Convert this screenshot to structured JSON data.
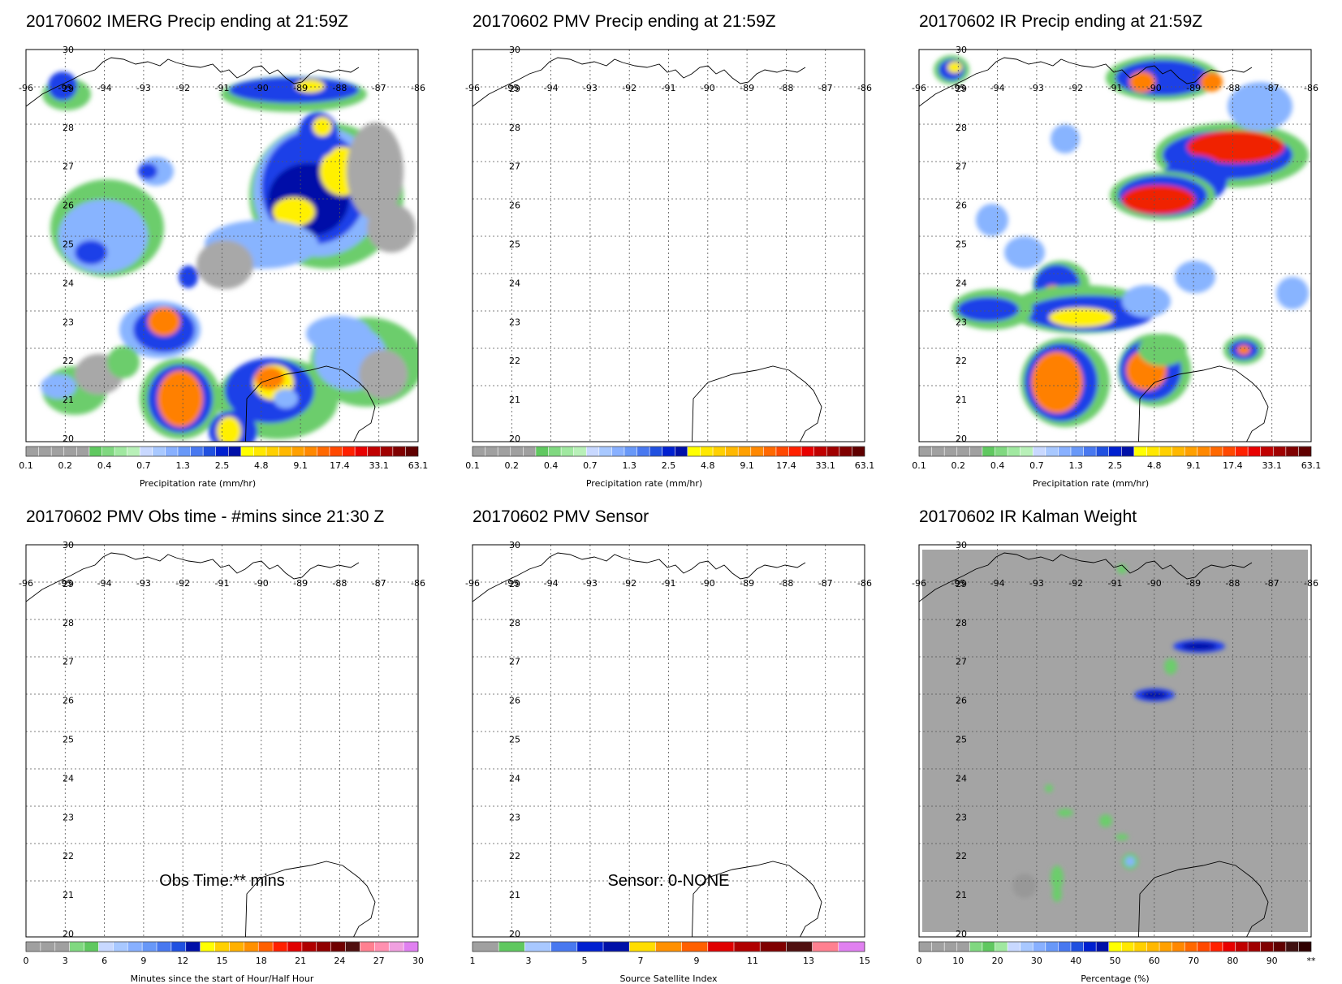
{
  "panels": [
    {
      "id": "imerg",
      "title": "20170602 IMERG Precip ending at 21:59Z",
      "colorbar_title": "Precipitation rate (mm/hr)",
      "colorbar_labels": [
        "0.1",
        "0.2",
        "0.4",
        "0.7",
        "1.3",
        "2.5",
        "4.8",
        "9.1",
        "17.4",
        "33.1",
        "63.1"
      ],
      "colorbar": "precip",
      "overlay": "imerg"
    },
    {
      "id": "pmv-precip",
      "title": "20170602 PMV Precip ending at 21:59Z",
      "colorbar_title": "Precipitation rate (mm/hr)",
      "colorbar_labels": [
        "0.1",
        "0.2",
        "0.4",
        "0.7",
        "1.3",
        "2.5",
        "4.8",
        "9.1",
        "17.4",
        "33.1",
        "63.1"
      ],
      "colorbar": "precip",
      "overlay": "none"
    },
    {
      "id": "ir-precip",
      "title": "20170602 IR Precip ending at 21:59Z",
      "colorbar_title": "Precipitation rate (mm/hr)",
      "colorbar_labels": [
        "0.1",
        "0.2",
        "0.4",
        "0.7",
        "1.3",
        "2.5",
        "4.8",
        "9.1",
        "17.4",
        "33.1",
        "63.1"
      ],
      "colorbar": "precip",
      "overlay": "ir"
    },
    {
      "id": "pmv-obs-time",
      "title": "20170602 PMV Obs time - #mins since 21:30 Z",
      "colorbar_title": "Minutes since the start of Hour/Half Hour",
      "colorbar_labels": [
        "0",
        "3",
        "6",
        "9",
        "12",
        "15",
        "18",
        "21",
        "24",
        "27",
        "30"
      ],
      "colorbar": "minutes",
      "overlay": "none",
      "annotation": "Obs Time:** mins"
    },
    {
      "id": "pmv-sensor",
      "title": "20170602 PMV Sensor",
      "colorbar_title": "Source Satellite Index",
      "colorbar_labels": [
        "1",
        "3",
        "5",
        "7",
        "9",
        "11",
        "13",
        "15"
      ],
      "colorbar": "sensor",
      "overlay": "none",
      "annotation": "Sensor:  0-NONE"
    },
    {
      "id": "ir-kalman",
      "title": "20170602 IR Kalman Weight",
      "colorbar_title": "Percentage (%)",
      "colorbar_labels": [
        "0",
        "10",
        "20",
        "30",
        "40",
        "50",
        "60",
        "70",
        "80",
        "90",
        "**"
      ],
      "colorbar": "percent",
      "overlay": "kalman"
    }
  ],
  "map": {
    "lon_labels": [
      "-96",
      "-95",
      "-94",
      "-93",
      "-92",
      "-91",
      "-90",
      "-89",
      "-88",
      "-87",
      "-86"
    ],
    "lat_labels": [
      "30",
      "29",
      "28",
      "27",
      "26",
      "25",
      "24",
      "23",
      "22",
      "21",
      "20"
    ],
    "lon_range": [
      -96,
      -86
    ],
    "lat_range": [
      20,
      30
    ]
  },
  "colors": {
    "precip": [
      "#a0a0a0",
      "#a0a0a0",
      "#a0a0a0",
      "#a0a0a0",
      "#a0a0a0",
      "#60c860",
      "#80d880",
      "#a0e8a0",
      "#b8f0b8",
      "#c8d8ff",
      "#a8c8ff",
      "#88b0ff",
      "#6898f8",
      "#4878f0",
      "#2050e0",
      "#0020d0",
      "#0010a8",
      "#ffff00",
      "#ffe800",
      "#ffd000",
      "#ffb800",
      "#ffa000",
      "#ff8800",
      "#ff6800",
      "#ff4800",
      "#ff2000",
      "#e80000",
      "#c00000",
      "#a00000",
      "#800000",
      "#600000"
    ],
    "minutes": [
      "#a0a0a0",
      "#a0a0a0",
      "#a0a0a0",
      "#80d880",
      "#60c860",
      "#c8d8ff",
      "#a8c8ff",
      "#88b0ff",
      "#6898f8",
      "#4878f0",
      "#2050e0",
      "#0010a8",
      "#ffff00",
      "#ffd000",
      "#ffb000",
      "#ff9000",
      "#ff6000",
      "#ff2000",
      "#e00000",
      "#b00000",
      "#900000",
      "#700000",
      "#501010",
      "#ff8090",
      "#ff90b0",
      "#f0a0e0",
      "#e080f0"
    ],
    "sensor": [
      "#a0a0a0",
      "#60c860",
      "#a8c8ff",
      "#4878f0",
      "#0020d0",
      "#0010a8",
      "#ffdd00",
      "#ff9000",
      "#ff6000",
      "#e00000",
      "#b00000",
      "#800000",
      "#501010",
      "#ff8090",
      "#e080f0"
    ],
    "percent": [
      "#a0a0a0",
      "#a0a0a0",
      "#a0a0a0",
      "#a0a0a0",
      "#80d880",
      "#60c860",
      "#a0e8a0",
      "#c8d8ff",
      "#a8c8ff",
      "#88b0ff",
      "#6898f8",
      "#4878f0",
      "#2050e0",
      "#0020d0",
      "#0010a8",
      "#ffff00",
      "#ffe800",
      "#ffd000",
      "#ffb800",
      "#ffa000",
      "#ff8800",
      "#ff6800",
      "#ff4800",
      "#ff2000",
      "#e80000",
      "#c00000",
      "#a00000",
      "#800000",
      "#600000",
      "#401010",
      "#300000"
    ]
  }
}
